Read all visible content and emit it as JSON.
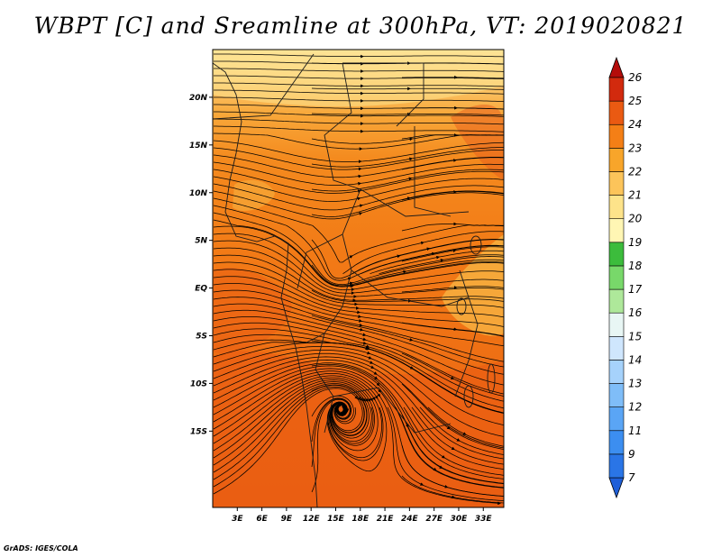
{
  "title": "WBPT [C] and Sreamline at 300hPa, VT: 2019020821",
  "credit": "GrADS: IGES/COLA",
  "map": {
    "lat_range": [
      -23,
      25
    ],
    "lon_range": [
      0,
      35.5
    ],
    "lat_labels": [
      {
        "lat": 20,
        "text": "20N"
      },
      {
        "lat": 15,
        "text": "15N"
      },
      {
        "lat": 10,
        "text": "10N"
      },
      {
        "lat": 5,
        "text": "5N"
      },
      {
        "lat": 0,
        "text": "EQ"
      },
      {
        "lat": -5,
        "text": "5S"
      },
      {
        "lat": -10,
        "text": "10S"
      },
      {
        "lat": -15,
        "text": "15S"
      }
    ],
    "lon_labels": [
      {
        "lon": 3,
        "text": "3E"
      },
      {
        "lon": 6,
        "text": "6E"
      },
      {
        "lon": 9,
        "text": "9E"
      },
      {
        "lon": 12,
        "text": "12E"
      },
      {
        "lon": 15,
        "text": "15E"
      },
      {
        "lon": 18,
        "text": "18E"
      },
      {
        "lon": 21,
        "text": "21E"
      },
      {
        "lon": 24,
        "text": "24E"
      },
      {
        "lon": 27,
        "text": "27E"
      },
      {
        "lon": 30,
        "text": "30E"
      },
      {
        "lon": 33,
        "text": "33E"
      }
    ],
    "vortices": [
      {
        "name": "cyclone-south",
        "lon": 15.5,
        "lat": -12.5
      },
      {
        "name": "eddy-central",
        "lon": 15,
        "lat": 1.5
      }
    ]
  },
  "colorbar": {
    "levels": [
      "7",
      "9",
      "11",
      "12",
      "13",
      "14",
      "15",
      "16",
      "17",
      "18",
      "19",
      "20",
      "21",
      "22",
      "23",
      "24",
      "25",
      "26"
    ],
    "colors": [
      "#1f5fd8",
      "#2a75e6",
      "#3c8ef0",
      "#5aa5f5",
      "#7fbdf8",
      "#a6d2fb",
      "#cfe6fd",
      "#e8f6f4",
      "#aee89a",
      "#78d86a",
      "#3cbc3c",
      "#fff6b4",
      "#fde38a",
      "#fcc45a",
      "#f8a52a",
      "#f47f16",
      "#ea5a12",
      "#d22a0e",
      "#b40c0a"
    ]
  }
}
